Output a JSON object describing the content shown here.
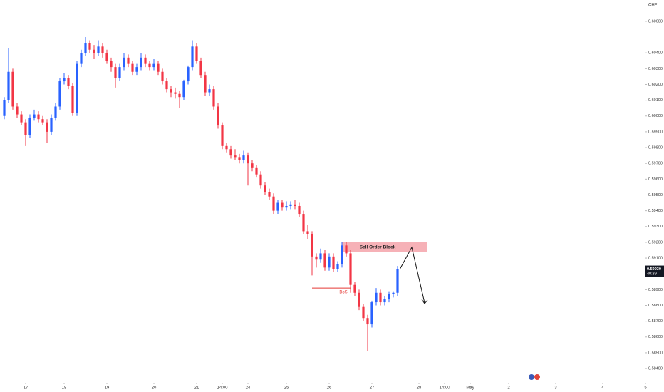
{
  "chart_data": {
    "type": "candlestick",
    "currency": "CHF",
    "up_color": "#2962ff",
    "down_color": "#f23645",
    "xlim": [
      -1,
      150
    ],
    "ylim": [
      0.5831,
      0.60735
    ],
    "x": [
      0,
      1,
      2,
      3,
      4,
      5,
      6,
      7,
      8,
      9,
      10,
      11,
      12,
      13,
      14,
      15,
      16,
      17,
      18,
      19,
      20,
      21,
      22,
      23,
      24,
      25,
      26,
      27,
      28,
      29,
      30,
      31,
      32,
      33,
      34,
      35,
      36,
      37,
      38,
      39,
      40,
      41,
      42,
      43,
      44,
      45,
      46,
      47,
      48,
      49,
      50,
      51,
      52,
      53,
      54,
      55,
      56,
      57,
      58,
      59,
      60,
      61,
      62,
      63,
      64,
      65,
      66,
      67,
      68,
      69,
      70,
      71,
      72,
      73,
      74,
      75,
      76,
      77,
      78,
      79,
      80,
      81,
      82,
      83,
      84,
      85,
      86,
      87,
      88,
      89,
      90,
      91,
      92
    ],
    "open": [
      0.6,
      0.601,
      0.6028,
      0.6006,
      0.6001,
      0.5996,
      0.5988,
      0.5999,
      0.6001,
      0.5998,
      0.5996,
      0.599,
      0.5999,
      0.6006,
      0.6022,
      0.6024,
      0.6019,
      0.6002,
      0.6033,
      0.604,
      0.6046,
      0.6042,
      0.604,
      0.6044,
      0.604,
      0.6035,
      0.6031,
      0.6024,
      0.6031,
      0.6037,
      0.6033,
      0.6028,
      0.6031,
      0.6037,
      0.6033,
      0.6031,
      0.6033,
      0.6028,
      0.6022,
      0.6017,
      0.6015,
      0.6014,
      0.6012,
      0.6022,
      0.6031,
      0.6044,
      0.6035,
      0.6026,
      0.6015,
      0.6017,
      0.6006,
      0.5994,
      0.5981,
      0.5979,
      0.5975,
      0.5974,
      0.5972,
      0.5975,
      0.597,
      0.5967,
      0.5963,
      0.5956,
      0.5952,
      0.5949,
      0.594,
      0.5945,
      0.5942,
      0.5943,
      0.5944,
      0.5943,
      0.5938,
      0.5927,
      0.5925,
      0.5911,
      0.5909,
      0.5913,
      0.5904,
      0.5911,
      0.5903,
      0.5906,
      0.5918,
      0.5913,
      0.5893,
      0.5888,
      0.5879,
      0.5872,
      0.5868,
      0.5882,
      0.5888,
      0.5882,
      0.5884,
      0.5887,
      0.5888
    ],
    "high": [
      0.6012,
      0.6043,
      0.603,
      0.6008,
      0.6003,
      0.5998,
      0.6001,
      0.6004,
      0.6003,
      0.6,
      0.5998,
      0.6001,
      0.6008,
      0.6024,
      0.6027,
      0.6026,
      0.6021,
      0.6035,
      0.6042,
      0.605,
      0.6048,
      0.6045,
      0.6048,
      0.6046,
      0.6042,
      0.6037,
      0.6033,
      0.6033,
      0.604,
      0.6039,
      0.6035,
      0.6033,
      0.604,
      0.6039,
      0.6035,
      0.6036,
      0.6035,
      0.603,
      0.6024,
      0.6019,
      0.6018,
      0.6016,
      0.6023,
      0.6032,
      0.6048,
      0.6046,
      0.6037,
      0.6028,
      0.602,
      0.6019,
      0.6008,
      0.5996,
      0.5983,
      0.5981,
      0.5979,
      0.5976,
      0.5978,
      0.5977,
      0.5972,
      0.5969,
      0.5965,
      0.5958,
      0.5954,
      0.5951,
      0.5947,
      0.5947,
      0.5946,
      0.5946,
      0.5947,
      0.5945,
      0.594,
      0.5931,
      0.5927,
      0.5913,
      0.5916,
      0.5915,
      0.5913,
      0.5913,
      0.5908,
      0.592,
      0.592,
      0.5915,
      0.5895,
      0.589,
      0.5881,
      0.5874,
      0.5883,
      0.5891,
      0.589,
      0.5886,
      0.5889,
      0.5889,
      0.5905
    ],
    "low": [
      0.5998,
      0.6008,
      0.6004,
      0.5999,
      0.5994,
      0.5981,
      0.5986,
      0.5997,
      0.5996,
      0.5994,
      0.5983,
      0.5988,
      0.5997,
      0.6004,
      0.602,
      0.6017,
      0.6,
      0.6,
      0.6031,
      0.6038,
      0.604,
      0.6036,
      0.6038,
      0.6037,
      0.6033,
      0.6028,
      0.6018,
      0.6022,
      0.6029,
      0.6031,
      0.6026,
      0.6026,
      0.6029,
      0.6031,
      0.6029,
      0.6029,
      0.6026,
      0.602,
      0.6015,
      0.6012,
      0.6011,
      0.6005,
      0.601,
      0.602,
      0.6029,
      0.6033,
      0.6024,
      0.6013,
      0.6013,
      0.6004,
      0.5992,
      0.5979,
      0.5977,
      0.5973,
      0.5972,
      0.597,
      0.597,
      0.5956,
      0.5965,
      0.5961,
      0.5954,
      0.595,
      0.5947,
      0.5938,
      0.5938,
      0.594,
      0.594,
      0.5941,
      0.5941,
      0.5936,
      0.5925,
      0.5922,
      0.5899,
      0.5904,
      0.5907,
      0.5902,
      0.5902,
      0.5901,
      0.5901,
      0.5904,
      0.5911,
      0.5888,
      0.5886,
      0.5877,
      0.587,
      0.5851,
      0.5866,
      0.588,
      0.588,
      0.588,
      0.5882,
      0.5885,
      0.5886
    ],
    "close": [
      0.601,
      0.6028,
      0.6006,
      0.6001,
      0.5996,
      0.5988,
      0.5999,
      0.6001,
      0.5998,
      0.5996,
      0.599,
      0.5999,
      0.6006,
      0.6022,
      0.6024,
      0.6019,
      0.6002,
      0.6033,
      0.604,
      0.6046,
      0.6042,
      0.604,
      0.6044,
      0.604,
      0.6035,
      0.6031,
      0.6024,
      0.6031,
      0.6037,
      0.6033,
      0.6028,
      0.6031,
      0.6037,
      0.6033,
      0.6031,
      0.6033,
      0.6028,
      0.6022,
      0.6017,
      0.6015,
      0.6014,
      0.6012,
      0.6022,
      0.6031,
      0.6044,
      0.6035,
      0.6026,
      0.6015,
      0.6017,
      0.6006,
      0.5994,
      0.5981,
      0.5979,
      0.5975,
      0.5974,
      0.5972,
      0.5975,
      0.597,
      0.5967,
      0.5963,
      0.5956,
      0.5952,
      0.5949,
      0.594,
      0.5945,
      0.5942,
      0.5943,
      0.5944,
      0.5943,
      0.5938,
      0.5927,
      0.5925,
      0.5911,
      0.5909,
      0.5913,
      0.5904,
      0.5911,
      0.5903,
      0.5906,
      0.5918,
      0.5913,
      0.5893,
      0.5888,
      0.5879,
      0.5872,
      0.5868,
      0.5882,
      0.5888,
      0.5882,
      0.5884,
      0.5887,
      0.5888,
      0.5903
    ],
    "xticks": [
      {
        "value": 5,
        "label": "17"
      },
      {
        "value": 14,
        "label": "18"
      },
      {
        "value": 24,
        "label": "19"
      },
      {
        "value": 35,
        "label": "20"
      },
      {
        "value": 45,
        "label": "21"
      },
      {
        "value": 51,
        "label": "14:00"
      },
      {
        "value": 57,
        "label": "24"
      },
      {
        "value": 66,
        "label": "25"
      },
      {
        "value": 76,
        "label": "26"
      },
      {
        "value": 86,
        "label": "27"
      },
      {
        "value": 97,
        "label": "28"
      },
      {
        "value": 103,
        "label": "14:00"
      },
      {
        "value": 109,
        "label": "May"
      },
      {
        "value": 118,
        "label": "2"
      },
      {
        "value": 129,
        "label": "3"
      },
      {
        "value": 140,
        "label": "4"
      },
      {
        "value": 150,
        "label": "5"
      }
    ],
    "yticks": [
      {
        "value": 0.606,
        "label": "0.60600"
      },
      {
        "value": 0.604,
        "label": "0.60400"
      },
      {
        "value": 0.603,
        "label": "0.60300"
      },
      {
        "value": 0.602,
        "label": "0.60200"
      },
      {
        "value": 0.601,
        "label": "0.60100"
      },
      {
        "value": 0.6,
        "label": "0.60000"
      },
      {
        "value": 0.599,
        "label": "0.59900"
      },
      {
        "value": 0.598,
        "label": "0.59800"
      },
      {
        "value": 0.597,
        "label": "0.59700"
      },
      {
        "value": 0.596,
        "label": "0.59600"
      },
      {
        "value": 0.595,
        "label": "0.59500"
      },
      {
        "value": 0.594,
        "label": "0.59400"
      },
      {
        "value": 0.593,
        "label": "0.59300"
      },
      {
        "value": 0.592,
        "label": "0.59200"
      },
      {
        "value": 0.591,
        "label": "0.59100"
      },
      {
        "value": 0.589,
        "label": "0.58900"
      },
      {
        "value": 0.588,
        "label": "0.58800"
      },
      {
        "value": 0.587,
        "label": "0.58700"
      },
      {
        "value": 0.586,
        "label": "0.58600"
      },
      {
        "value": 0.585,
        "label": "0.58500"
      },
      {
        "value": 0.584,
        "label": "0.58400"
      }
    ],
    "last_price": {
      "value": 0.5903,
      "label": "0.59030"
    },
    "countdown": "40:39",
    "zone": {
      "label": "Sell Order Block",
      "xlim": [
        79,
        99
      ],
      "ylim": [
        0.5914,
        0.592
      ],
      "color": "#f5a3aa"
    },
    "bos": {
      "label": "BoS",
      "y": 0.5891,
      "xlim": [
        72,
        81
      ],
      "color": "#e53935"
    }
  }
}
